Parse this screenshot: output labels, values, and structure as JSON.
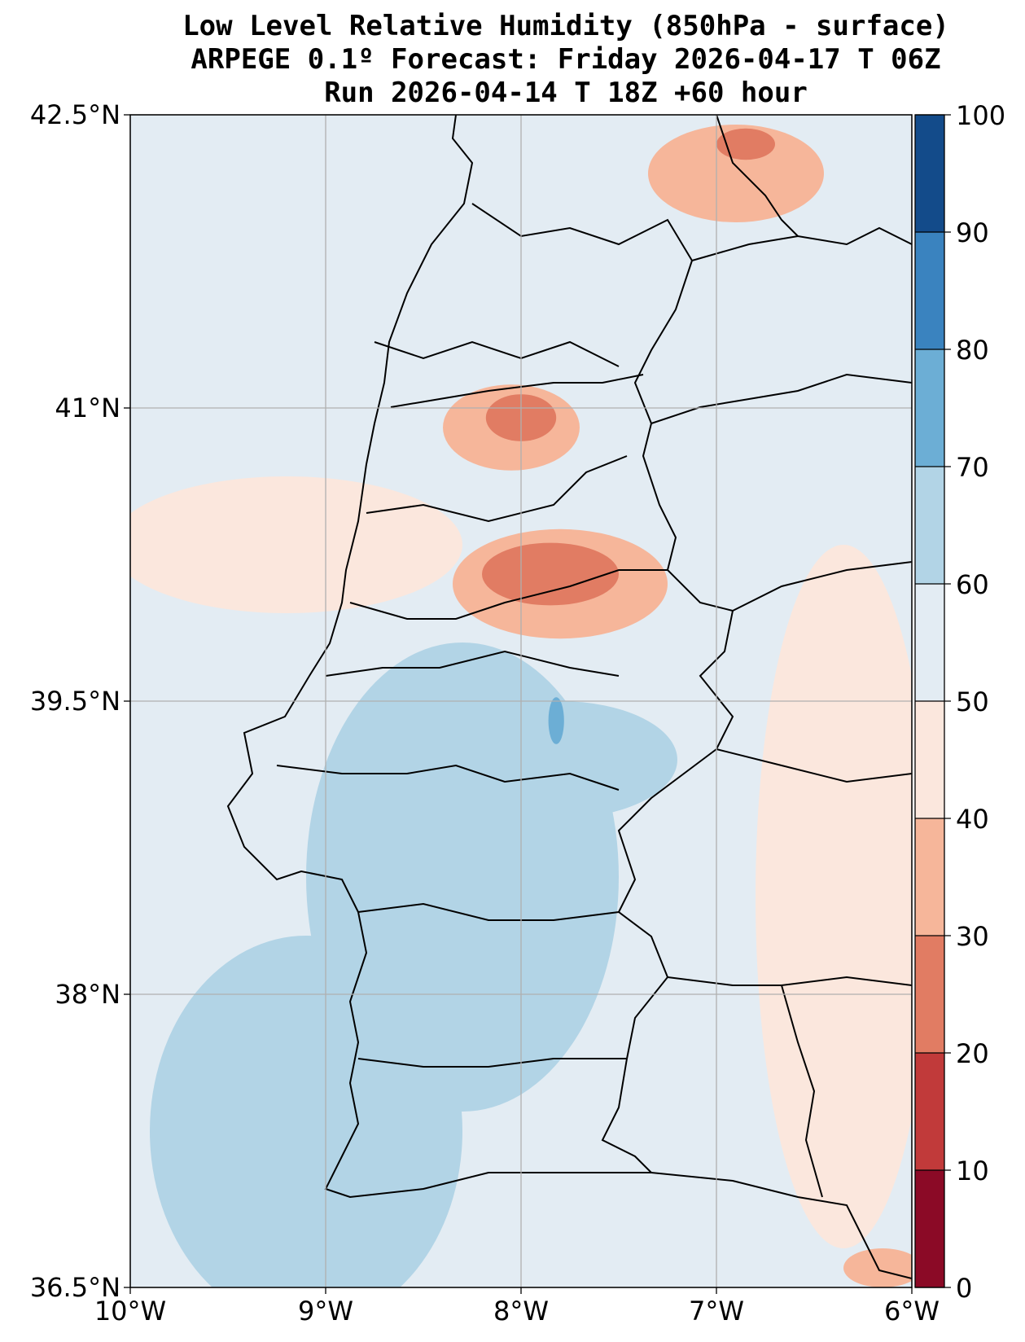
{
  "title": {
    "line1": "Low Level Relative Humidity (850hPa - surface)",
    "line2": "ARPEGE 0.1º Forecast: Friday 2026-04-17 T 06Z",
    "line3": "Run 2026-04-14 T 18Z +60 hour"
  },
  "chart_data": {
    "type": "heatmap",
    "variable": "Low Level Relative Humidity (850hPa - surface)",
    "units": "%",
    "model": "ARPEGE 0.1º",
    "valid_time": "Friday 2026-04-17 T 06Z",
    "run": "Run 2026-04-14 T 18Z +60 hour",
    "lon_range": [
      -10,
      -6
    ],
    "lat_range": [
      36.5,
      42.5
    ],
    "x_ticks": [
      {
        "value": -10,
        "label": "10°W"
      },
      {
        "value": -9,
        "label": "9°W"
      },
      {
        "value": -8,
        "label": "8°W"
      },
      {
        "value": -7,
        "label": "7°W"
      },
      {
        "value": -6,
        "label": "6°W"
      }
    ],
    "y_ticks": [
      {
        "value": 36.5,
        "label": "36.5°N"
      },
      {
        "value": 38,
        "label": "38°N"
      },
      {
        "value": 39.5,
        "label": "39.5°N"
      },
      {
        "value": 41,
        "label": "41°N"
      },
      {
        "value": 42.5,
        "label": "42.5°N"
      }
    ],
    "grid": true,
    "colorbar": {
      "levels": [
        0,
        10,
        20,
        30,
        40,
        50,
        60,
        70,
        80,
        90,
        100
      ],
      "labels": [
        "0",
        "10",
        "20",
        "30",
        "40",
        "50",
        "60",
        "70",
        "80",
        "90",
        "100"
      ],
      "colors": [
        "#8b0a26",
        "#c13a3a",
        "#e17c63",
        "#f6b69a",
        "#fbe7dd",
        "#e3ecf3",
        "#b2d4e6",
        "#6caed5",
        "#3a83bf",
        "#134b8a"
      ]
    },
    "regions": [
      {
        "name": "west-ocean-band",
        "bin": "50-60",
        "value": 55,
        "cx": -9.4,
        "cy": 39.5,
        "rx": 0.6,
        "ry": 3.0
      },
      {
        "name": "coastal-band",
        "bin": "40-50",
        "value": 45,
        "cx": -9.2,
        "cy": 40.3,
        "rx": 0.9,
        "ry": 0.35
      },
      {
        "name": "far-south-ocean",
        "bin": "60-70",
        "value": 63,
        "cx": -9.1,
        "cy": 37.3,
        "rx": 0.8,
        "ry": 1.0
      },
      {
        "name": "tagus-alentejo",
        "bin": "60-70",
        "value": 63,
        "cx": -8.3,
        "cy": 38.6,
        "rx": 0.8,
        "ry": 1.2
      },
      {
        "name": "central-blue",
        "bin": "60-70",
        "value": 64,
        "cx": -7.8,
        "cy": 39.2,
        "rx": 0.6,
        "ry": 0.3
      },
      {
        "name": "central-streak",
        "bin": "70-80",
        "value": 72,
        "cx": -7.82,
        "cy": 39.4,
        "rx": 0.04,
        "ry": 0.12
      },
      {
        "name": "north-ne",
        "bin": "30-40",
        "value": 36,
        "cx": -6.9,
        "cy": 42.2,
        "rx": 0.45,
        "ry": 0.25
      },
      {
        "name": "north-ne-core",
        "bin": "20-30",
        "value": 27,
        "cx": -6.85,
        "cy": 42.35,
        "rx": 0.15,
        "ry": 0.08
      },
      {
        "name": "douro-region",
        "bin": "30-40",
        "value": 34,
        "cx": -8.05,
        "cy": 40.9,
        "rx": 0.35,
        "ry": 0.22
      },
      {
        "name": "douro-core",
        "bin": "20-30",
        "value": 27,
        "cx": -8.0,
        "cy": 40.95,
        "rx": 0.18,
        "ry": 0.12
      },
      {
        "name": "serra-estrela",
        "bin": "30-40",
        "value": 33,
        "cx": -7.8,
        "cy": 40.1,
        "rx": 0.55,
        "ry": 0.28
      },
      {
        "name": "serra-estrela-core",
        "bin": "20-30",
        "value": 26,
        "cx": -7.85,
        "cy": 40.15,
        "rx": 0.35,
        "ry": 0.16
      },
      {
        "name": "southeast-spain",
        "bin": "40-50",
        "value": 45,
        "cx": -6.35,
        "cy": 38.5,
        "rx": 0.45,
        "ry": 1.8
      },
      {
        "name": "southern-edge",
        "bin": "30-40",
        "value": 38,
        "cx": -6.15,
        "cy": 36.6,
        "rx": 0.2,
        "ry": 0.1
      }
    ]
  }
}
